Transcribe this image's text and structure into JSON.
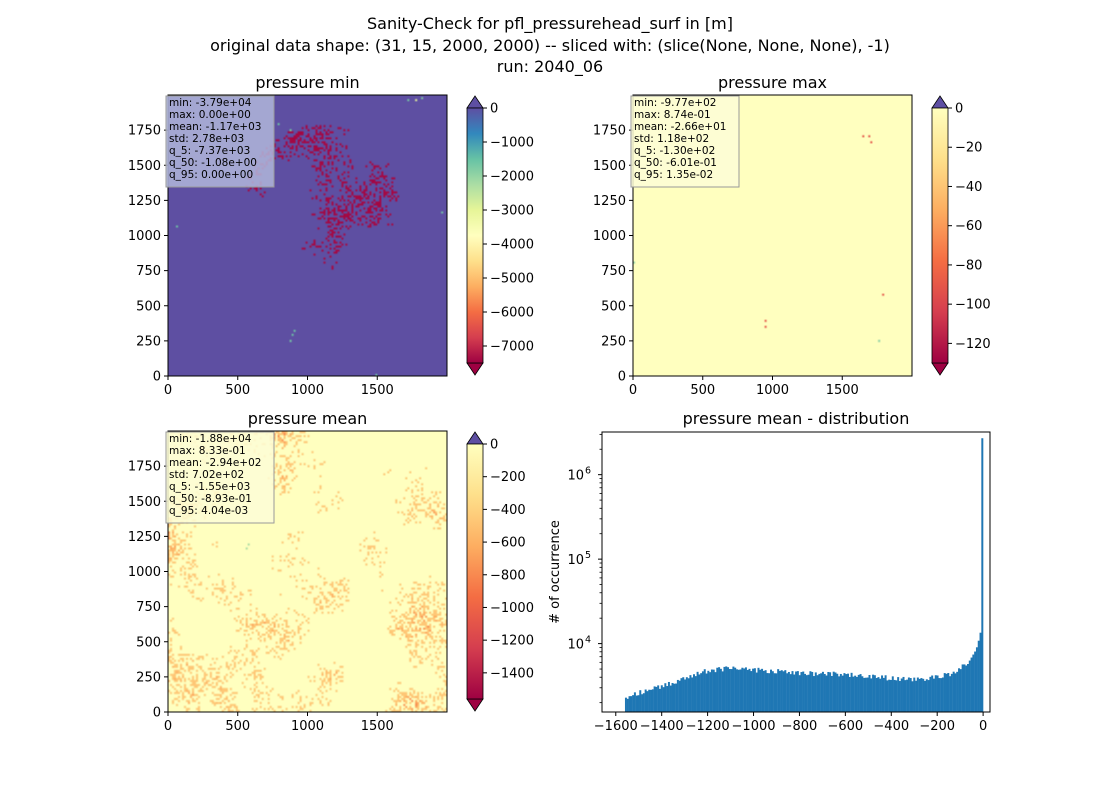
{
  "figure": {
    "title_lines": [
      "Sanity-Check for pfl_pressurehead_surf in [m]",
      "original data shape: (31, 15, 2000, 2000) -- sliced with: (slice(None, None, None), -1)",
      "run: 2040_06"
    ],
    "colormap": "Spectral",
    "colors": {
      "low": "#9e0142",
      "mid": "#ffffbf",
      "high": "#5e4fa2",
      "hist_bar": "#1f77b4"
    }
  },
  "chart_data": [
    {
      "type": "heatmap",
      "title": "pressure min",
      "xlim": [
        0,
        2000
      ],
      "ylim": [
        0,
        2000
      ],
      "xticks": [
        0,
        500,
        1000,
        1500
      ],
      "yticks": [
        0,
        250,
        500,
        750,
        1000,
        1250,
        1500,
        1750
      ],
      "colorbar": {
        "vmin": -7500,
        "vmax": 0,
        "ticks": [
          0,
          -1000,
          -2000,
          -3000,
          -4000,
          -5000,
          -6000,
          -7000
        ],
        "extend": "both"
      },
      "stats": [
        "min: -3.79e+04",
        "max: 0.00e+00",
        "mean: -1.17e+03",
        "std: 2.78e+03",
        "q_5: -7.37e+03",
        "q_50: -1.08e+00",
        "q_95: 0.00e+00"
      ],
      "stats_box": "#b0b6db"
    },
    {
      "type": "heatmap",
      "title": "pressure max",
      "xlim": [
        0,
        2000
      ],
      "ylim": [
        0,
        2000
      ],
      "xticks": [
        0,
        500,
        1000,
        1500
      ],
      "yticks": [
        0,
        250,
        500,
        750,
        1000,
        1250,
        1500,
        1750
      ],
      "colorbar": {
        "vmin": -130,
        "vmax": 0,
        "ticks": [
          0,
          -20,
          -40,
          -60,
          -80,
          -100,
          -120
        ],
        "extend": "both"
      },
      "stats": [
        "min: -9.77e+02",
        "max: 8.74e-01",
        "mean: -2.66e+01",
        "std: 1.18e+02",
        "q_5: -1.30e+02",
        "q_50: -6.01e-01",
        "q_95: 1.35e-02"
      ],
      "stats_box": "#fdfdd6"
    },
    {
      "type": "heatmap",
      "title": "pressure mean",
      "xlim": [
        0,
        2000
      ],
      "ylim": [
        0,
        2000
      ],
      "xticks": [
        0,
        500,
        1000,
        1500
      ],
      "yticks": [
        0,
        250,
        500,
        750,
        1000,
        1250,
        1500,
        1750
      ],
      "colorbar": {
        "vmin": -1560,
        "vmax": 0,
        "ticks": [
          0,
          -200,
          -400,
          -600,
          -800,
          -1000,
          -1200,
          -1400
        ],
        "extend": "both"
      },
      "stats": [
        "min: -1.88e+04",
        "max: 8.33e-01",
        "mean: -2.94e+02",
        "std: 7.02e+02",
        "q_5: -1.55e+03",
        "q_50: -8.93e-01",
        "q_95: 4.04e-03"
      ],
      "stats_box": "#fdfdd6"
    },
    {
      "type": "bar",
      "title": "pressure mean - distribution",
      "ylabel": "# of occurrence",
      "xlim": [
        -1660,
        30
      ],
      "ylog": true,
      "ylim": [
        1550,
        3200000
      ],
      "xticks": [
        -1600,
        -1400,
        -1200,
        -1000,
        -800,
        -600,
        -400,
        -200,
        0
      ],
      "ytick_labels": [
        {
          "base": "10",
          "exp": "4",
          "value": 10000
        },
        {
          "base": "10",
          "exp": "5",
          "value": 100000
        },
        {
          "base": "10",
          "exp": "6",
          "value": 1000000
        }
      ],
      "bin_range": [
        -1560,
        0
      ],
      "bins": 200,
      "anchors": [
        [
          -1560,
          2200
        ],
        [
          -1500,
          2600
        ],
        [
          -1400,
          3100
        ],
        [
          -1300,
          3900
        ],
        [
          -1200,
          4800
        ],
        [
          -1100,
          5100
        ],
        [
          -1000,
          4900
        ],
        [
          -900,
          4700
        ],
        [
          -800,
          4500
        ],
        [
          -700,
          4400
        ],
        [
          -600,
          4300
        ],
        [
          -500,
          4100
        ],
        [
          -400,
          3900
        ],
        [
          -300,
          3700
        ],
        [
          -200,
          4000
        ],
        [
          -120,
          4600
        ],
        [
          -60,
          6200
        ],
        [
          -30,
          8500
        ],
        [
          -15,
          12000
        ],
        [
          -5,
          17000
        ],
        [
          0,
          2700000
        ]
      ]
    }
  ]
}
